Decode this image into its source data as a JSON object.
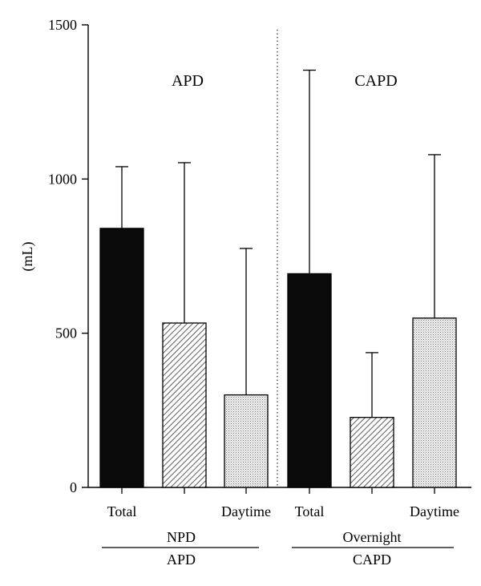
{
  "chart_data": {
    "type": "bar",
    "ylabel": "(mL)",
    "ylim": [
      0,
      1500
    ],
    "yticks": [
      0,
      500,
      1000,
      1500
    ],
    "groups": [
      {
        "name": "APD",
        "bars": [
          {
            "label": "Total",
            "value": 840,
            "error": 200,
            "fill": "solid"
          },
          {
            "label": "",
            "value": 533,
            "error": 520,
            "fill": "hatch"
          },
          {
            "label": "Daytime",
            "value": 300,
            "error": 475,
            "fill": "dots"
          }
        ],
        "sublabel": "NPD",
        "sublabel_under_bar_index": 1,
        "bottom_label": "APD"
      },
      {
        "name": "CAPD",
        "bars": [
          {
            "label": "Total",
            "value": 693,
            "error": 660,
            "fill": "solid"
          },
          {
            "label": "",
            "value": 227,
            "error": 210,
            "fill": "hatch"
          },
          {
            "label": "Daytime",
            "value": 549,
            "error": 530,
            "fill": "dots"
          }
        ],
        "sublabel": "Overnight",
        "sublabel_under_bar_index": 1,
        "bottom_label": "CAPD"
      }
    ],
    "divider": "dotted-vertical-between-groups"
  }
}
